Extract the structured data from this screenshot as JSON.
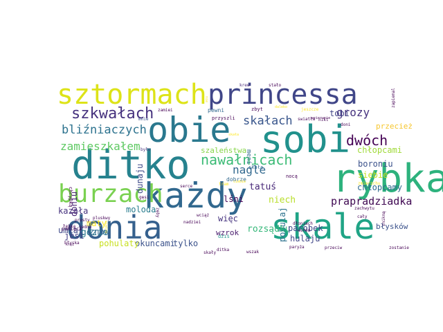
{
  "wordcloud": {
    "words": [
      {
        "text": "sztormach",
        "color": "#dde318"
      },
      {
        "text": "princessa",
        "color": "#404688"
      },
      {
        "text": "obie",
        "color": "#2a788e"
      },
      {
        "text": "sobi",
        "color": "#21918c"
      },
      {
        "text": "ditko",
        "color": "#26828e"
      },
      {
        "text": "rybka",
        "color": "#2db27d"
      },
      {
        "text": "każdy",
        "color": "#31688e"
      },
      {
        "text": "burzach",
        "color": "#7ad151"
      },
      {
        "text": "donia",
        "color": "#35608d"
      },
      {
        "text": "skale",
        "color": "#20a486"
      },
      {
        "text": "szkwałach",
        "color": "#46327e"
      },
      {
        "text": "nawałnicach",
        "color": "#3bbb75"
      },
      {
        "text": "dwóch",
        "color": "#440154"
      },
      {
        "text": "bliźniaczych",
        "color": "#2c728e"
      },
      {
        "text": "skałach",
        "color": "#39568c"
      },
      {
        "text": "zamieszkałem",
        "color": "#5ec962"
      },
      {
        "text": "grozy",
        "color": "#46327e"
      },
      {
        "text": "nagle",
        "color": "#31688e"
      },
      {
        "text": "tobi",
        "color": "#414487"
      },
      {
        "text": "przecież",
        "color": "#f6c62e"
      },
      {
        "text": "prapradziadka",
        "color": "#3e0751"
      },
      {
        "text": "szaleństwa",
        "color": "#86d549"
      },
      {
        "text": "chłopcami",
        "color": "#a0da39"
      },
      {
        "text": "boroniu",
        "color": "#3b528b"
      },
      {
        "text": "siebie",
        "color": "#c5e021"
      },
      {
        "text": "tatuś",
        "color": "#482878"
      },
      {
        "text": "niech",
        "color": "#b8de29"
      },
      {
        "text": "pohulaj",
        "color": "#2c728e"
      },
      {
        "text": "kazała",
        "color": "#46327e"
      },
      {
        "text": "moloda",
        "color": "#287c8e"
      },
      {
        "text": "rozsądku",
        "color": "#35b779"
      },
      {
        "text": "okuncami",
        "color": "#3b528b"
      },
      {
        "text": "pohulaty",
        "color": "#c8e020"
      },
      {
        "text": "dunaju",
        "color": "#3e4a89"
      },
      {
        "text": "doniu",
        "color": "#482475"
      },
      {
        "text": "jest",
        "color": "#433e85"
      },
      {
        "text": "gdzie",
        "color": "#2a788e"
      },
      {
        "text": "znów",
        "color": "#31688e"
      },
      {
        "text": "maty",
        "color": "#fde725"
      },
      {
        "text": "umiał",
        "color": "#3e4989"
      },
      {
        "text": "tylko",
        "color": "#3b528b"
      },
      {
        "text": "wzrok",
        "color": "#481a6c"
      },
      {
        "text": "więc",
        "color": "#46337f"
      },
      {
        "text": "lśni",
        "color": "#440154"
      },
      {
        "text": "parobek",
        "color": "#3e4989"
      },
      {
        "text": "hulaju",
        "color": "#404688"
      },
      {
        "text": "chłopcamy",
        "color": "#306a8e"
      },
      {
        "text": "błysków",
        "color": "#3b528b"
      },
      {
        "text": "meni",
        "color": "#31688e"
      },
      {
        "text": "dobrze",
        "color": "#31688e"
      },
      {
        "text": "nocą",
        "color": "#440154"
      },
      {
        "text": "skała",
        "color": "#31688e"
      },
      {
        "text": "dziś",
        "color": "#1f988b"
      },
      {
        "text": "pewni",
        "color": "#31688e"
      },
      {
        "text": "zbyt",
        "color": "#440154"
      },
      {
        "text": "przyszli",
        "color": "#440154"
      },
      {
        "text": "zamiei",
        "color": "#440154"
      },
      {
        "text": "mnie",
        "color": "#3b528b"
      },
      {
        "text": "krew",
        "color": "#482878"
      },
      {
        "text": "stało",
        "color": "#440154"
      },
      {
        "text": "było",
        "color": "#46327e"
      },
      {
        "text": "chrypką",
        "color": "#440154"
      },
      {
        "text": "pamięci",
        "color": "#440154"
      },
      {
        "text": "błyska",
        "color": "#440154"
      },
      {
        "text": "gęsi",
        "color": "#440154"
      },
      {
        "text": "serce",
        "color": "#440154"
      },
      {
        "text": "zęby",
        "color": "#440154"
      },
      {
        "text": "prosty",
        "color": "#440154"
      },
      {
        "text": "łekką",
        "color": "#440154"
      },
      {
        "text": "jedna",
        "color": "#440154"
      },
      {
        "text": "pluskwy",
        "color": "#440154"
      },
      {
        "text": "wciąż",
        "color": "#440154"
      },
      {
        "text": "nadziei",
        "color": "#440154"
      },
      {
        "text": "kręi",
        "color": "#440154"
      },
      {
        "text": "skały",
        "color": "#440154"
      },
      {
        "text": "ditka",
        "color": "#440154"
      },
      {
        "text": "wszak",
        "color": "#440154"
      },
      {
        "text": "paryża",
        "color": "#440154"
      },
      {
        "text": "przeciw",
        "color": "#440154"
      },
      {
        "text": "zostanie",
        "color": "#440154"
      },
      {
        "text": "cały",
        "color": "#440154"
      },
      {
        "text": "zachwytu",
        "color": "#440154"
      },
      {
        "text": "znikną",
        "color": "#440154"
      },
      {
        "text": "dłoniach",
        "color": "#440154"
      },
      {
        "text": "wśród",
        "color": "#440154"
      },
      {
        "text": "zapiemal",
        "color": "#440154"
      },
      {
        "text": "doni",
        "color": "#440154"
      },
      {
        "text": "nikt",
        "color": "#440154"
      },
      {
        "text": "swiatła",
        "color": "#440154"
      },
      {
        "text": "jeszcze",
        "color": "#fde725"
      },
      {
        "text": "ciebie",
        "color": "#fde725"
      },
      {
        "text": "tram",
        "color": "#fde725"
      },
      {
        "text": "zmierzchu",
        "color": "#fde725"
      },
      {
        "text": "wiatru",
        "color": "#fde725"
      },
      {
        "text": "wzierunie",
        "color": "#440154"
      },
      {
        "text": "skała",
        "color": "#fde725"
      },
      {
        "text": "daleko",
        "color": "#fde725"
      },
      {
        "text": "nie",
        "color": "#fde725"
      },
      {
        "text": "bo",
        "color": "#fde725"
      }
    ]
  }
}
